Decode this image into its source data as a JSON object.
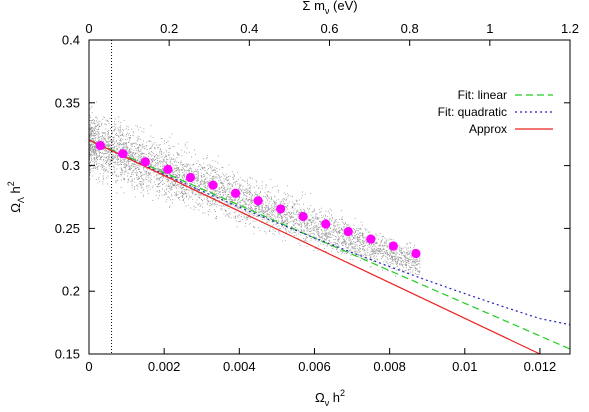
{
  "chart_data": {
    "type": "scatter",
    "title": "",
    "xlabel": {
      "base": "Ω",
      "sub": "ν",
      "sup": "2",
      "suffix": " h"
    },
    "ylabel": {
      "base": "Ω",
      "sub": "Λ",
      "sup": "2",
      "suffix": " h"
    },
    "x2label": {
      "prefix": "Σ m",
      "sub": "ν",
      "suffix": " (eV)"
    },
    "xlim": [
      0,
      0.0128
    ],
    "ylim": [
      0.15,
      0.4
    ],
    "x2lim": [
      0,
      1.2
    ],
    "xticks": [
      0,
      0.002,
      0.004,
      0.006,
      0.008,
      0.01,
      0.012
    ],
    "xtick_labels": [
      "0",
      "0.002",
      "0.004",
      "0.006",
      "0.008",
      "0.01",
      "0.012"
    ],
    "yticks": [
      0.15,
      0.2,
      0.25,
      0.3,
      0.35,
      0.4
    ],
    "ytick_labels": [
      "0.15",
      "0.2",
      "0.25",
      "0.3",
      "0.35",
      "0.4"
    ],
    "x2ticks": [
      0,
      0.2,
      0.4,
      0.6,
      0.8,
      1,
      1.2
    ],
    "x2tick_labels": [
      "0",
      "0.2",
      "0.4",
      "0.6",
      "0.8",
      "1",
      "1.2"
    ],
    "grid": false,
    "legend_position": "top-right",
    "vertical_line_x": 0.0006,
    "series": [
      {
        "name": "Fit: linear",
        "kind": "line",
        "style": "dashed",
        "color": "#22cc22",
        "x": [
          0,
          0.0128
        ],
        "y": [
          0.3205,
          0.154
        ]
      },
      {
        "name": "Fit: quadratic",
        "kind": "line",
        "style": "dotted",
        "color": "#2222bb",
        "x": [
          0,
          0.001,
          0.002,
          0.003,
          0.004,
          0.005,
          0.006,
          0.007,
          0.008,
          0.009,
          0.01,
          0.011,
          0.012,
          0.0128
        ],
        "y": [
          0.3205,
          0.3065,
          0.293,
          0.2798,
          0.2669,
          0.2545,
          0.2424,
          0.2308,
          0.2195,
          0.2086,
          0.1981,
          0.1879,
          0.1782,
          0.1733
        ]
      },
      {
        "name": "Approx",
        "kind": "line",
        "style": "solid",
        "color": "#ee2222",
        "x": [
          0,
          0.012
        ],
        "y": [
          0.3205,
          0.15
        ]
      },
      {
        "name": "",
        "kind": "points",
        "color": "#ff00ff",
        "x": [
          0.0003,
          0.0009,
          0.0015,
          0.0021,
          0.0027,
          0.0033,
          0.0039,
          0.0045,
          0.0051,
          0.0057,
          0.0063,
          0.0069,
          0.0075,
          0.0081,
          0.0087
        ],
        "y": [
          0.316,
          0.3095,
          0.303,
          0.297,
          0.2905,
          0.2845,
          0.278,
          0.272,
          0.2655,
          0.2595,
          0.2535,
          0.2475,
          0.2415,
          0.236,
          0.23
        ]
      }
    ],
    "scatter_cloud": {
      "color": "#999999",
      "x_range": [
        0,
        0.0088
      ],
      "center_at_0": 0.318,
      "slope": -11.0,
      "spread": 0.012
    }
  }
}
